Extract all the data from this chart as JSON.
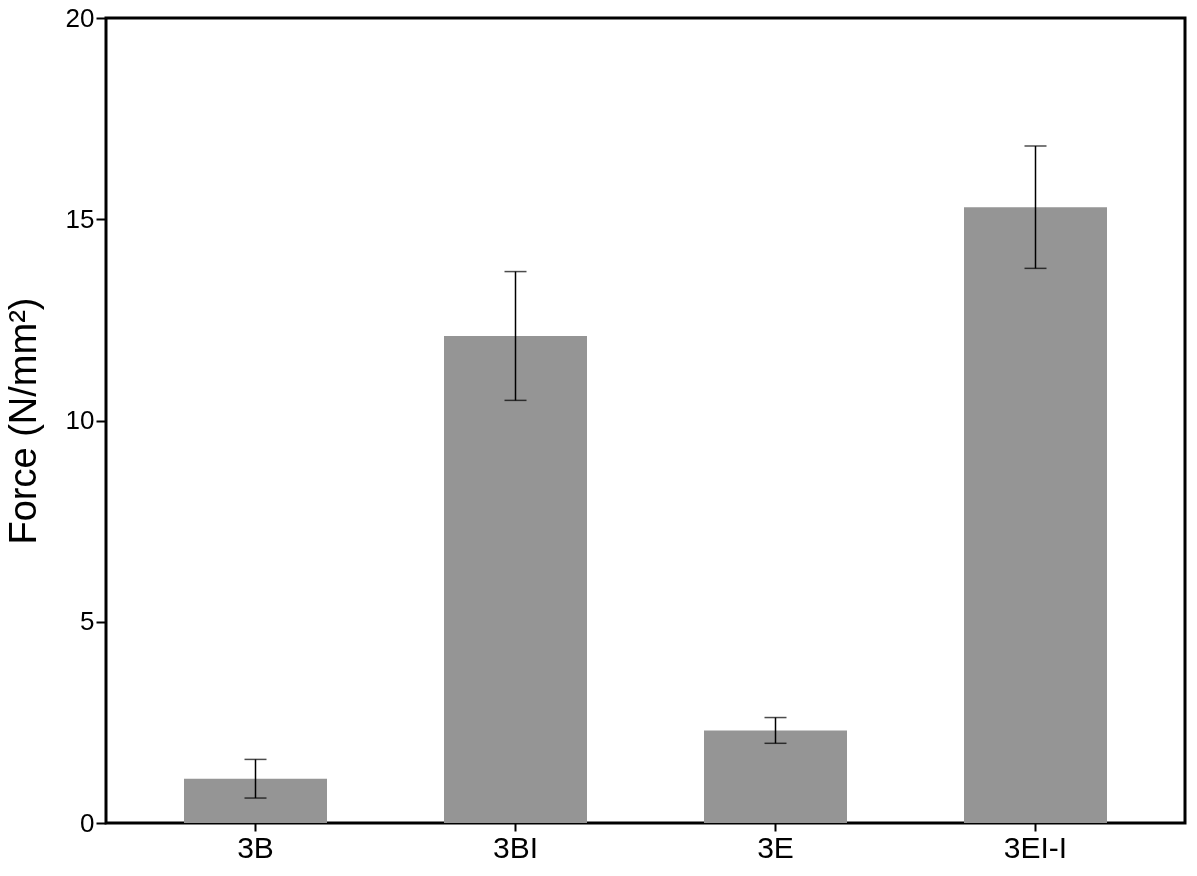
{
  "chart_data": {
    "type": "bar",
    "ylabel": "Force (N/mm²)",
    "categories": [
      "3B",
      "3BI",
      "3E",
      "3EI-I"
    ],
    "values": [
      1.1,
      12.1,
      2.3,
      15.3
    ],
    "errors": [
      0.48,
      1.6,
      0.32,
      1.52
    ],
    "color": "#959595",
    "ylim": [
      0,
      20
    ],
    "yticks": [
      0,
      5,
      10,
      15,
      20
    ],
    "grid": false
  }
}
